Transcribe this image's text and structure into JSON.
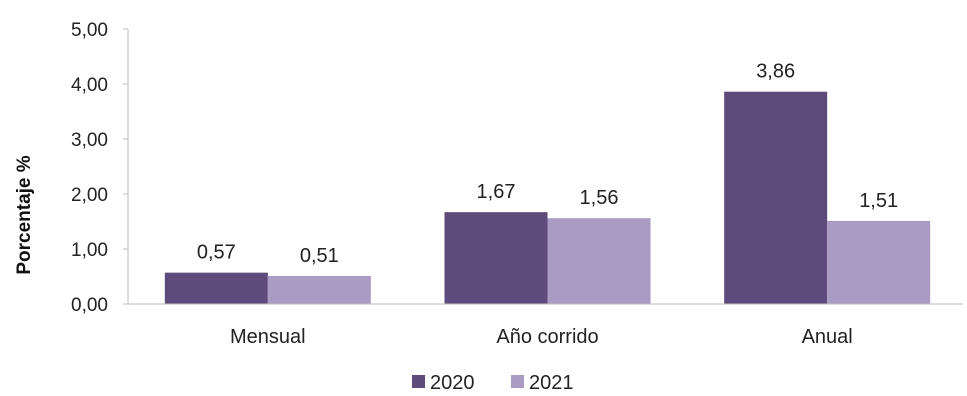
{
  "chart_data": {
    "type": "bar",
    "title": "",
    "xlabel": "",
    "ylabel": "Porcentaje %",
    "ylim": [
      0,
      5
    ],
    "yticks": [
      0,
      1,
      2,
      3,
      4,
      5
    ],
    "ytick_labels": [
      "0,00",
      "1,00",
      "2,00",
      "3,00",
      "4,00",
      "5,00"
    ],
    "categories": [
      "Mensual",
      "Año corrido",
      "Anual"
    ],
    "series": [
      {
        "name": "2020",
        "values": [
          0.57,
          1.67,
          3.86
        ],
        "labels": [
          "0,57",
          "1,67",
          "3,86"
        ],
        "color": "#5f4a7c"
      },
      {
        "name": "2021",
        "values": [
          0.51,
          1.56,
          1.51
        ],
        "labels": [
          "0,51",
          "1,56",
          "1,51"
        ],
        "color": "#a99bc3"
      }
    ],
    "grid": false,
    "legend_position": "bottom"
  }
}
